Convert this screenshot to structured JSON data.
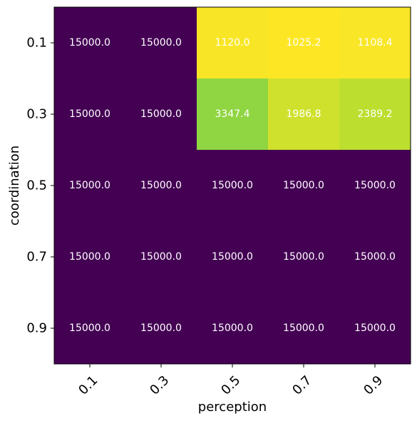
{
  "chart_data": {
    "type": "heatmap",
    "title": "",
    "xlabel": "perception",
    "ylabel": "coordination",
    "x_categories": [
      "0.1",
      "0.3",
      "0.5",
      "0.7",
      "0.9"
    ],
    "y_categories": [
      "0.1",
      "0.3",
      "0.5",
      "0.7",
      "0.9"
    ],
    "values": [
      [
        15000.0,
        15000.0,
        1120.0,
        1025.2,
        1108.4
      ],
      [
        15000.0,
        15000.0,
        3347.4,
        1986.8,
        2389.2
      ],
      [
        15000.0,
        15000.0,
        15000.0,
        15000.0,
        15000.0
      ],
      [
        15000.0,
        15000.0,
        15000.0,
        15000.0,
        15000.0
      ],
      [
        15000.0,
        15000.0,
        15000.0,
        15000.0,
        15000.0
      ]
    ],
    "value_labels": [
      [
        "15000.0",
        "15000.0",
        "1120.0",
        "1025.2",
        "1108.4"
      ],
      [
        "15000.0",
        "15000.0",
        "3347.4",
        "1986.8",
        "2389.2"
      ],
      [
        "15000.0",
        "15000.0",
        "15000.0",
        "15000.0",
        "15000.0"
      ],
      [
        "15000.0",
        "15000.0",
        "15000.0",
        "15000.0",
        "15000.0"
      ],
      [
        "15000.0",
        "15000.0",
        "15000.0",
        "15000.0",
        "15000.0"
      ]
    ],
    "colormap": "viridis_r",
    "color_range": [
      1025.2,
      15000.0
    ],
    "x_tick_rotation": 45,
    "grid": false,
    "legend": "none"
  }
}
